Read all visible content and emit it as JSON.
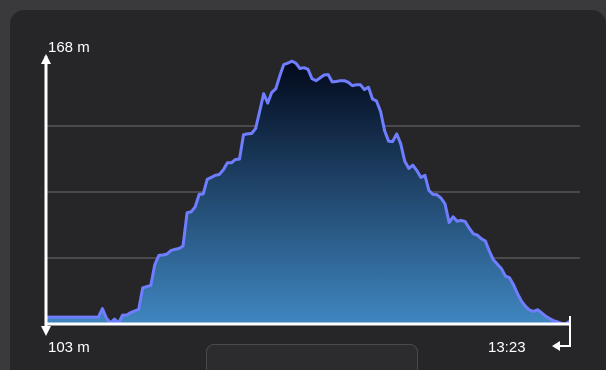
{
  "chart_data": {
    "type": "area",
    "ylabel_top": "168 m",
    "ylabel_bottom": "103 m",
    "xlabel_end": "13:23",
    "ylim": [
      103,
      168
    ],
    "grid": true,
    "colors": {
      "line": "#6f7dff",
      "fill_top": "#02081a",
      "fill_bottom": "#3f86c0",
      "grid": "#4a4a4c",
      "axis": "#ffffff"
    },
    "values": [
      104.7,
      104.7,
      104.7,
      104.7,
      104.7,
      104.7,
      104.7,
      104.7,
      104.7,
      104.7,
      104.7,
      104.7,
      104.7,
      104.7,
      106.8,
      104.4,
      103.3,
      104.2,
      103.3,
      105.2,
      105.2,
      105.8,
      106.2,
      106.6,
      111.9,
      112.2,
      112.5,
      117.6,
      119.9,
      120.0,
      120.2,
      121.1,
      121.4,
      121.6,
      122.2,
      130.4,
      130.6,
      131.8,
      134.9,
      135.0,
      138.6,
      139.1,
      139.6,
      139.8,
      141.0,
      142.7,
      142.7,
      143.5,
      143.6,
      149.6,
      149.8,
      149.9,
      151.1,
      155.3,
      159.7,
      157.4,
      160.0,
      160.9,
      164.1,
      166.9,
      167.2,
      167.7,
      167.2,
      165.9,
      166.1,
      165.7,
      163.4,
      162.9,
      163.6,
      164.3,
      164.4,
      162.6,
      162.7,
      162.9,
      162.9,
      162.5,
      161.7,
      161.9,
      161.9,
      160.7,
      161.3,
      158.4,
      157.9,
      155.3,
      150.6,
      148.0,
      147.9,
      149.8,
      147.4,
      143.1,
      141.3,
      142.1,
      140.8,
      139.1,
      139.6,
      135.9,
      134.9,
      134.8,
      134.0,
      132.6,
      128.0,
      129.4,
      128.3,
      128.5,
      128.2,
      126.6,
      125.2,
      124.9,
      124.0,
      123.4,
      120.9,
      118.8,
      117.7,
      116.6,
      114.8,
      114.4,
      112.6,
      110.4,
      108.6,
      107.3,
      106.4,
      106.1,
      106.5,
      105.7,
      104.9,
      104.3,
      103.8,
      103.5,
      103.1,
      103.1,
      103.7
    ]
  }
}
